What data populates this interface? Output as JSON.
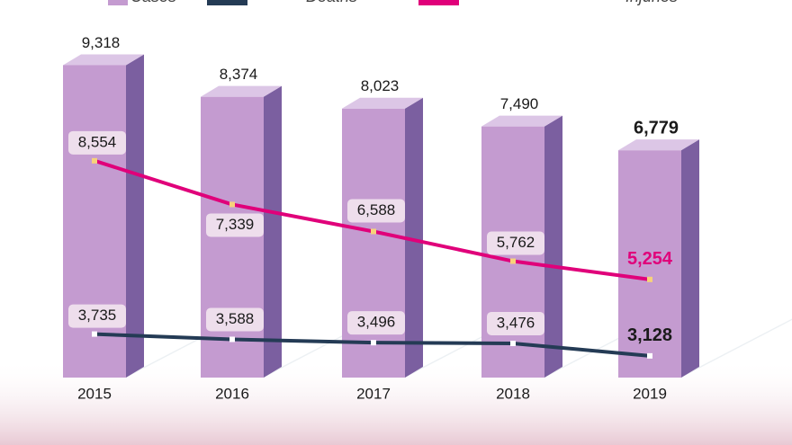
{
  "chart_data": {
    "type": "bar",
    "categories": [
      "2015",
      "2016",
      "2017",
      "2018",
      "2019"
    ],
    "series": [
      {
        "name": "Cases",
        "type": "bar",
        "color": "#c49bd0",
        "values": [
          9318,
          8374,
          8023,
          7490,
          6779
        ],
        "value_labels": [
          "9,318",
          "8,374",
          "8,023",
          "7,490",
          "6,779"
        ]
      },
      {
        "name": "Deaths",
        "type": "line",
        "color": "#243b55",
        "values": [
          3735,
          3588,
          3496,
          3476,
          3128
        ],
        "value_labels": [
          "3,735",
          "3,588",
          "3,496",
          "3,476",
          "3,128"
        ]
      },
      {
        "name": "Injuries",
        "type": "line",
        "color": "#e0007a",
        "values": [
          8554,
          7339,
          6588,
          5762,
          5254
        ],
        "value_labels": [
          "8,554",
          "7,339",
          "6,588",
          "5,762",
          "5,254"
        ]
      }
    ]
  }
}
